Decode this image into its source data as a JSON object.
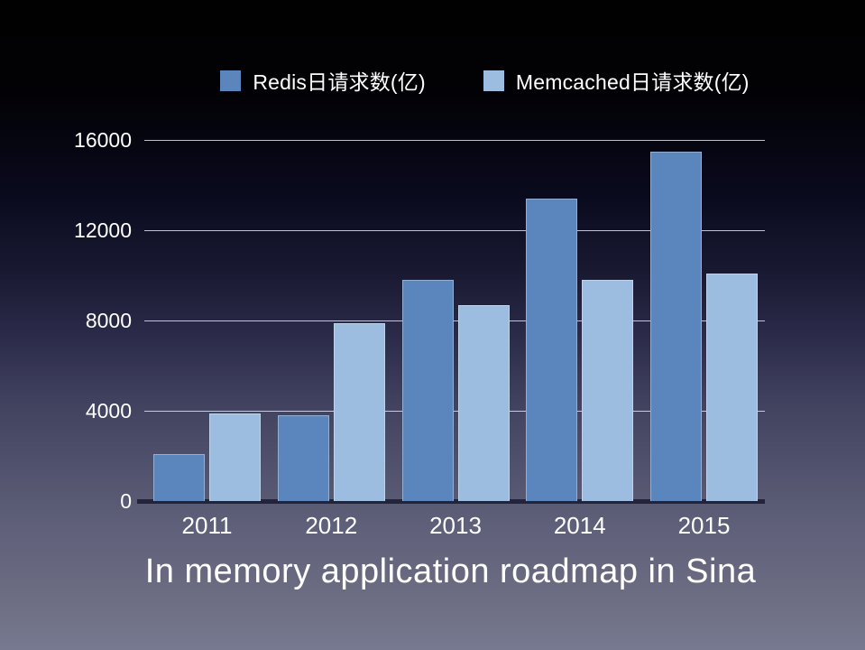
{
  "slide": {
    "title": "In memory application roadmap in Sina"
  },
  "chart_data": {
    "type": "bar",
    "title": "In memory application roadmap in Sina",
    "categories": [
      "2011",
      "2012",
      "2013",
      "2014",
      "2015"
    ],
    "series": [
      {
        "name": "Redis日请求数(亿)",
        "color": "#5b85bd",
        "values": [
          2100,
          3800,
          9800,
          13400,
          15500
        ]
      },
      {
        "name": "Memcached日请求数(亿)",
        "color": "#9cbde0",
        "values": [
          3900,
          7900,
          8700,
          9800,
          10100
        ]
      }
    ],
    "xlabel": "",
    "ylabel": "",
    "ylim": [
      0,
      16000
    ],
    "yticks": [
      0,
      4000,
      8000,
      12000,
      16000
    ],
    "grid": true,
    "legend_position": "top",
    "text_color": "#ffffff",
    "gridline_color": "#dee2ee",
    "axis_line_color": "#23233a",
    "background": "gradient black to slate"
  }
}
